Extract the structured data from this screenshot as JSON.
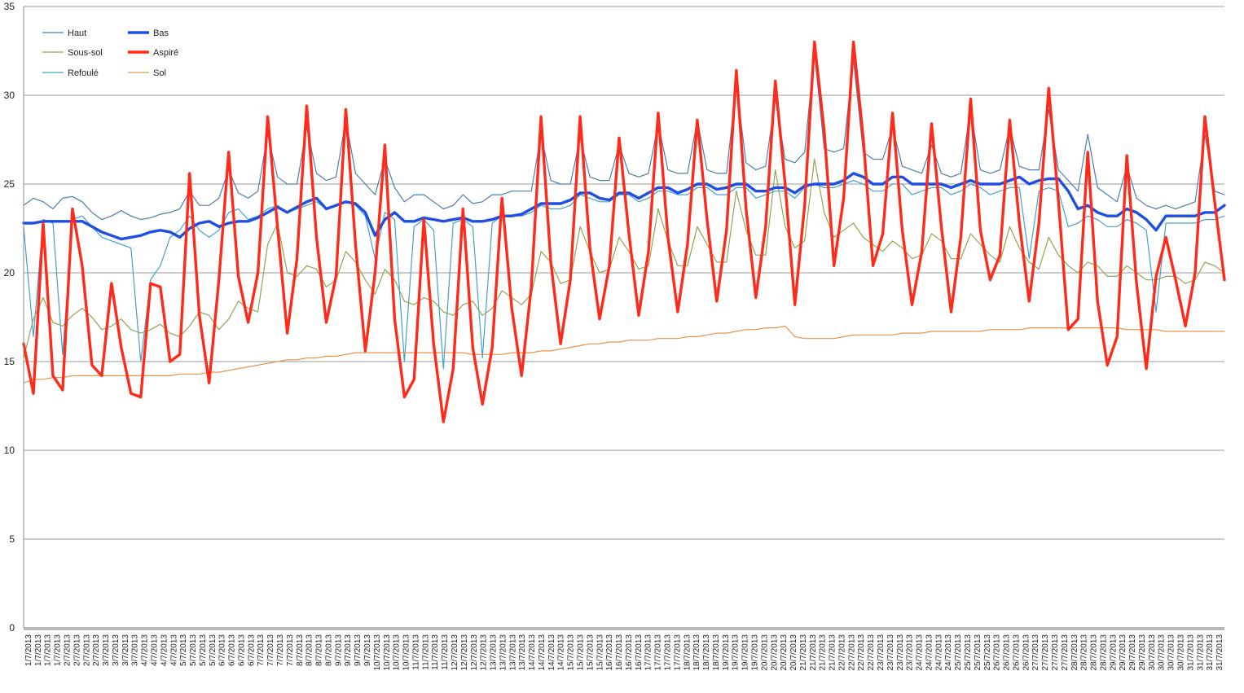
{
  "chart_data": {
    "type": "line",
    "title": "",
    "xlabel": "",
    "ylabel": "",
    "ylim": [
      0,
      35
    ],
    "yticks": [
      0,
      5,
      10,
      15,
      20,
      25,
      30,
      35
    ],
    "grid": true,
    "legend_position": "top-left",
    "x_tick_labels": [
      "1/7/2013",
      "1/7/2013",
      "1/7/2013",
      "1/7/2013",
      "2/7/2013",
      "2/7/2013",
      "2/7/2013",
      "2/7/2013",
      "3/7/2013",
      "3/7/2013",
      "3/7/2013",
      "3/7/2013",
      "4/7/2013",
      "4/7/2013",
      "4/7/2013",
      "4/7/2013",
      "5/7/2013",
      "5/7/2013",
      "5/7/2013",
      "5/7/2013",
      "6/7/2013",
      "6/7/2013",
      "6/7/2013",
      "6/7/2013",
      "7/7/2013",
      "7/7/2013",
      "7/7/2013",
      "7/7/2013",
      "8/7/2013",
      "8/7/2013",
      "8/7/2013",
      "8/7/2013",
      "9/7/2013",
      "9/7/2013",
      "9/7/2013",
      "9/7/2013",
      "10/7/2013",
      "10/7/2013",
      "10/7/2013",
      "10/7/2013",
      "11/7/2013",
      "11/7/2013",
      "11/7/2013",
      "11/7/2013",
      "12/7/2013",
      "12/7/2013",
      "12/7/2013",
      "12/7/2013",
      "13/7/2013",
      "13/7/2013",
      "13/7/2013",
      "13/7/2013",
      "14/7/2013",
      "14/7/2013",
      "14/7/2013",
      "14/7/2013",
      "15/7/2013",
      "15/7/2013",
      "15/7/2013",
      "15/7/2013",
      "16/7/2013",
      "16/7/2013",
      "16/7/2013",
      "16/7/2013",
      "17/7/2013",
      "17/7/2013",
      "17/7/2013",
      "17/7/2013",
      "18/7/2013",
      "18/7/2013",
      "18/7/2013",
      "18/7/2013",
      "19/7/2013",
      "19/7/2013",
      "19/7/2013",
      "19/7/2013",
      "20/7/2013",
      "20/7/2013",
      "20/7/2013",
      "20/7/2013",
      "21/7/2013",
      "21/7/2013",
      "21/7/2013",
      "21/7/2013",
      "22/7/2013",
      "22/7/2013",
      "22/7/2013",
      "22/7/2013",
      "23/7/2013",
      "23/7/2013",
      "23/7/2013",
      "23/7/2013",
      "24/7/2013",
      "24/7/2013",
      "24/7/2013",
      "24/7/2013",
      "25/7/2013",
      "25/7/2013",
      "25/7/2013",
      "25/7/2013",
      "26/7/2013",
      "26/7/2013",
      "26/7/2013",
      "26/7/2013",
      "27/7/2013",
      "27/7/2013",
      "27/7/2013",
      "27/7/2013",
      "28/7/2013",
      "28/7/2013",
      "28/7/2013",
      "28/7/2013",
      "29/7/2013",
      "29/7/2013",
      "29/7/2013",
      "29/7/2013",
      "30/7/2013",
      "30/7/2013",
      "30/7/2013",
      "30/7/2013",
      "31/7/2013",
      "31/7/2013",
      "31/7/2013",
      "31/7/2013"
    ],
    "series": [
      {
        "name": "Haut",
        "color": "#4a7fb0",
        "width": 1.2,
        "values": [
          23.8,
          24.2,
          24.0,
          23.6,
          24.2,
          24.3,
          24.0,
          23.4,
          23.0,
          23.2,
          23.5,
          23.2,
          23.0,
          23.1,
          23.3,
          23.4,
          23.6,
          24.6,
          23.8,
          23.8,
          24.2,
          25.8,
          24.5,
          24.2,
          24.6,
          27.8,
          25.4,
          25.0,
          25.0,
          28.2,
          25.6,
          25.2,
          25.4,
          28.6,
          25.6,
          25.0,
          24.4,
          26.4,
          24.8,
          24.0,
          24.4,
          24.4,
          24.0,
          23.6,
          23.8,
          24.4,
          23.9,
          24.0,
          24.4,
          24.4,
          24.6,
          24.6,
          24.6,
          27.8,
          25.2,
          25.0,
          25.0,
          27.6,
          25.4,
          25.2,
          25.2,
          27.2,
          25.6,
          25.4,
          25.6,
          28.4,
          25.8,
          25.6,
          25.6,
          28.6,
          25.8,
          25.6,
          25.6,
          30.6,
          26.2,
          25.8,
          26.0,
          29.8,
          26.4,
          26.2,
          26.8,
          32.4,
          27.0,
          26.8,
          27.0,
          32.0,
          26.8,
          26.4,
          26.4,
          28.2,
          26.0,
          25.8,
          25.6,
          27.2,
          25.6,
          25.4,
          25.6,
          29.2,
          25.8,
          25.6,
          25.8,
          28.2,
          26.0,
          25.8,
          25.8,
          29.2,
          25.8,
          25.2,
          24.6,
          27.8,
          24.8,
          24.4,
          24.0,
          26.0,
          24.2,
          23.8,
          23.6,
          23.8,
          23.6,
          23.8,
          24.0,
          27.8,
          24.6,
          24.4
        ]
      },
      {
        "name": "Bas",
        "color": "#1f4fe0",
        "width": 3.4,
        "values": [
          22.8,
          22.8,
          22.9,
          22.9,
          22.9,
          22.9,
          22.9,
          22.6,
          22.3,
          22.1,
          21.9,
          22.0,
          22.1,
          22.3,
          22.4,
          22.3,
          22.0,
          22.5,
          22.8,
          22.9,
          22.6,
          22.8,
          22.9,
          22.9,
          23.1,
          23.4,
          23.7,
          23.4,
          23.7,
          24.0,
          24.2,
          23.6,
          23.8,
          24.0,
          23.9,
          23.4,
          22.1,
          23.0,
          23.4,
          22.9,
          22.9,
          23.1,
          23.0,
          22.9,
          23.0,
          23.1,
          22.9,
          22.9,
          23.0,
          23.2,
          23.2,
          23.3,
          23.6,
          23.9,
          23.9,
          23.9,
          24.1,
          24.5,
          24.5,
          24.2,
          24.1,
          24.5,
          24.5,
          24.2,
          24.5,
          24.8,
          24.8,
          24.5,
          24.7,
          25.0,
          25.0,
          24.7,
          24.8,
          25.0,
          25.0,
          24.6,
          24.6,
          24.8,
          24.8,
          24.5,
          24.9,
          25.0,
          25.0,
          25.0,
          25.2,
          25.6,
          25.4,
          25.0,
          25.0,
          25.4,
          25.4,
          25.0,
          25.0,
          25.0,
          25.0,
          24.8,
          25.0,
          25.2,
          25.0,
          25.0,
          25.0,
          25.2,
          25.4,
          25.0,
          25.2,
          25.3,
          25.3,
          24.6,
          23.6,
          23.8,
          23.4,
          23.2,
          23.2,
          23.6,
          23.4,
          23.0,
          22.4,
          23.2,
          23.2,
          23.2,
          23.2,
          23.4,
          23.4,
          23.8
        ]
      },
      {
        "name": "Sous-sol",
        "color": "#8fa653",
        "width": 1.2,
        "values": [
          15.2,
          17.4,
          18.6,
          17.2,
          17.0,
          17.6,
          18.0,
          17.5,
          16.8,
          17.0,
          17.4,
          16.8,
          16.6,
          16.8,
          17.1,
          16.6,
          16.4,
          17.0,
          17.8,
          17.6,
          16.8,
          17.4,
          18.4,
          18.0,
          17.8,
          21.6,
          22.8,
          20.0,
          19.8,
          20.4,
          20.2,
          19.2,
          19.6,
          21.2,
          20.6,
          19.6,
          18.8,
          20.2,
          19.6,
          18.4,
          18.2,
          18.6,
          18.4,
          17.8,
          17.6,
          18.2,
          18.4,
          17.6,
          18.0,
          19.0,
          18.6,
          18.2,
          18.8,
          21.2,
          20.6,
          19.4,
          19.6,
          22.6,
          21.2,
          20.0,
          20.2,
          22.0,
          21.2,
          20.2,
          20.4,
          23.6,
          21.8,
          20.4,
          20.4,
          22.6,
          21.6,
          20.6,
          20.6,
          24.6,
          22.4,
          21.0,
          21.0,
          25.8,
          22.6,
          21.4,
          21.8,
          26.4,
          23.4,
          22.0,
          22.4,
          22.8,
          22.0,
          21.6,
          21.2,
          21.8,
          21.4,
          20.8,
          21.0,
          22.2,
          21.8,
          20.8,
          20.8,
          22.2,
          21.6,
          21.0,
          20.6,
          22.6,
          21.4,
          20.6,
          20.2,
          22.0,
          21.0,
          20.4,
          20.0,
          20.6,
          20.4,
          19.8,
          19.8,
          20.4,
          20.0,
          19.6,
          19.6,
          19.8,
          19.8,
          19.4,
          19.6,
          20.6,
          20.4,
          20.0
        ]
      },
      {
        "name": "Aspiré",
        "color": "#ff2a1a",
        "width": 3.4,
        "values": [
          16.0,
          13.2,
          22.8,
          14.2,
          13.4,
          23.6,
          20.4,
          14.8,
          14.2,
          19.4,
          15.8,
          13.2,
          13.0,
          19.4,
          19.2,
          15.0,
          15.4,
          25.6,
          17.6,
          13.8,
          19.6,
          26.8,
          19.8,
          17.2,
          20.0,
          28.8,
          22.6,
          16.6,
          20.8,
          29.4,
          22.0,
          17.2,
          19.8,
          29.2,
          21.6,
          15.6,
          20.0,
          27.2,
          17.4,
          13.0,
          14.0,
          23.0,
          16.0,
          11.6,
          14.6,
          23.6,
          15.8,
          12.6,
          15.8,
          24.2,
          18.0,
          14.2,
          19.2,
          28.8,
          20.6,
          16.0,
          19.6,
          28.8,
          21.4,
          17.4,
          20.4,
          27.6,
          22.2,
          17.6,
          21.2,
          29.0,
          22.0,
          17.8,
          21.6,
          28.6,
          23.0,
          18.4,
          22.4,
          31.4,
          23.6,
          18.6,
          22.6,
          30.8,
          25.0,
          18.2,
          23.8,
          33.0,
          28.0,
          20.4,
          24.2,
          33.0,
          27.6,
          20.4,
          22.2,
          29.0,
          22.4,
          18.2,
          21.2,
          28.4,
          22.6,
          17.8,
          22.0,
          29.8,
          22.4,
          19.6,
          21.0,
          28.6,
          22.8,
          18.4,
          22.8,
          30.4,
          24.0,
          16.8,
          17.4,
          26.8,
          18.4,
          14.8,
          16.4,
          26.6,
          19.4,
          14.6,
          19.8,
          22.0,
          19.6,
          17.0,
          20.0,
          28.8,
          24.0,
          19.6
        ]
      },
      {
        "name": "Refoulé",
        "color": "#44a0cc",
        "width": 1.2,
        "values": [
          22.6,
          16.4,
          23.0,
          22.8,
          15.4,
          23.0,
          23.2,
          22.6,
          22.0,
          21.8,
          21.6,
          21.4,
          15.0,
          19.6,
          20.4,
          22.0,
          22.4,
          23.2,
          22.4,
          22.0,
          22.4,
          23.4,
          23.6,
          23.0,
          23.2,
          23.6,
          23.8,
          23.4,
          23.6,
          23.8,
          24.0,
          23.6,
          23.8,
          24.0,
          23.8,
          23.2,
          20.8,
          23.4,
          23.0,
          15.0,
          22.6,
          23.0,
          22.4,
          14.6,
          22.8,
          23.0,
          22.6,
          15.2,
          22.8,
          23.2,
          23.2,
          23.2,
          23.4,
          23.8,
          23.6,
          23.6,
          23.8,
          24.4,
          24.2,
          24.0,
          24.0,
          24.4,
          24.4,
          24.0,
          24.2,
          24.6,
          24.6,
          24.4,
          24.4,
          24.8,
          24.8,
          24.4,
          24.4,
          24.8,
          24.8,
          24.2,
          24.4,
          24.6,
          24.6,
          24.2,
          24.8,
          25.0,
          24.8,
          24.8,
          25.0,
          25.2,
          25.0,
          24.6,
          24.6,
          25.0,
          25.0,
          24.4,
          24.6,
          24.8,
          24.8,
          24.4,
          24.6,
          25.0,
          24.8,
          24.4,
          24.6,
          24.8,
          24.8,
          20.8,
          24.6,
          24.8,
          24.6,
          22.6,
          22.8,
          23.2,
          23.0,
          22.6,
          22.6,
          23.0,
          22.8,
          22.4,
          17.8,
          22.8,
          22.8,
          22.8,
          22.8,
          23.0,
          23.0,
          23.2
        ]
      },
      {
        "name": "Sol",
        "color": "#e8924a",
        "width": 1.2,
        "values": [
          13.8,
          14.0,
          14.0,
          14.1,
          14.1,
          14.2,
          14.2,
          14.2,
          14.2,
          14.2,
          14.2,
          14.2,
          14.2,
          14.2,
          14.2,
          14.2,
          14.3,
          14.3,
          14.3,
          14.4,
          14.4,
          14.5,
          14.6,
          14.7,
          14.8,
          14.9,
          15.0,
          15.1,
          15.1,
          15.2,
          15.2,
          15.3,
          15.3,
          15.4,
          15.5,
          15.5,
          15.5,
          15.5,
          15.5,
          15.5,
          15.5,
          15.5,
          15.5,
          15.5,
          15.5,
          15.5,
          15.4,
          15.4,
          15.4,
          15.4,
          15.5,
          15.5,
          15.5,
          15.6,
          15.6,
          15.7,
          15.8,
          15.9,
          16.0,
          16.0,
          16.1,
          16.1,
          16.2,
          16.2,
          16.2,
          16.3,
          16.3,
          16.3,
          16.4,
          16.4,
          16.5,
          16.6,
          16.6,
          16.7,
          16.8,
          16.8,
          16.9,
          16.9,
          17.0,
          16.4,
          16.3,
          16.3,
          16.3,
          16.3,
          16.4,
          16.5,
          16.5,
          16.5,
          16.5,
          16.5,
          16.6,
          16.6,
          16.6,
          16.7,
          16.7,
          16.7,
          16.7,
          16.7,
          16.7,
          16.8,
          16.8,
          16.8,
          16.8,
          16.9,
          16.9,
          16.9,
          16.9,
          16.9,
          16.9,
          16.9,
          16.9,
          16.9,
          16.9,
          16.8,
          16.8,
          16.8,
          16.8,
          16.7,
          16.7,
          16.7,
          16.7,
          16.7,
          16.7,
          16.7
        ]
      }
    ]
  }
}
